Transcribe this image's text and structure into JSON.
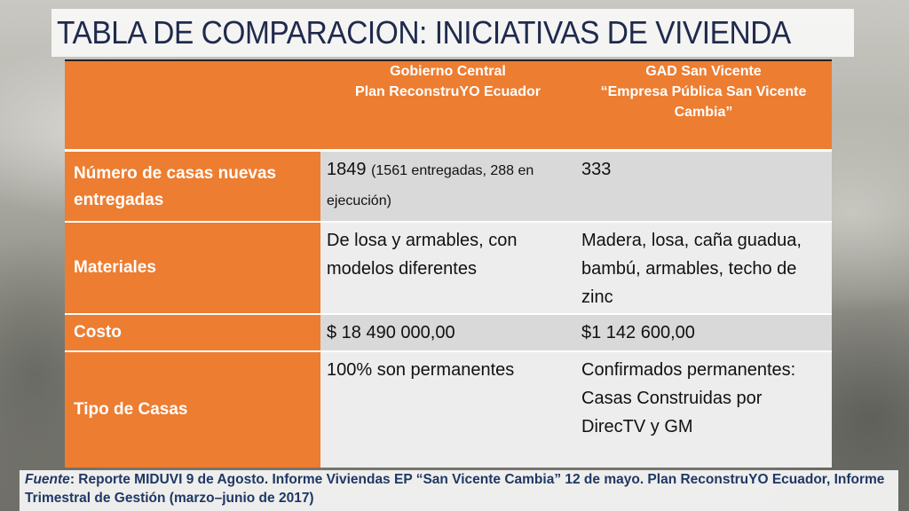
{
  "title": "TABLA DE COMPARACION: INICIATIVAS DE VIVIENDA",
  "table": {
    "headers": {
      "empty": "",
      "col1_line1": "Gobierno Central",
      "col1_line2": "Plan ReconstruYO Ecuador",
      "col2_line1": "GAD San Vicente",
      "col2_line2": "“Empresa Pública San Vicente Cambia”"
    },
    "rows": [
      {
        "label": "Número de casas nuevas entregadas",
        "col1_main": "1849",
        "col1_note": "(1561 entregadas, 288 en ejecución)",
        "col2": "333"
      },
      {
        "label": "Materiales",
        "col1": "De losa y armables, con modelos diferentes",
        "col2": "Madera, losa, caña guadua, bambú, armables, techo de zinc"
      },
      {
        "label": "Costo",
        "col1": "$ 18 490 000,00",
        "col2": "$1 142 600,00"
      },
      {
        "label": "Tipo de Casas",
        "col1": "100% son permanentes",
        "col2": "Confirmados permanentes: Casas Construidas por DirecTV y GM"
      }
    ]
  },
  "source": {
    "prefix": "Fuente",
    "text": ": Reporte MIDUVI 9 de Agosto. Informe Viviendas EP “San Vicente Cambia” 12 de mayo.  Plan ReconstruYO Ecuador, Informe Trimestral de Gestión (marzo–junio de 2017)"
  },
  "colors": {
    "title": "#1f2a4d",
    "header_orange": "#ed7d31",
    "row_gray_dark": "#d9d9d9",
    "row_gray_light": "#ededed",
    "source_text": "#1f3864"
  }
}
